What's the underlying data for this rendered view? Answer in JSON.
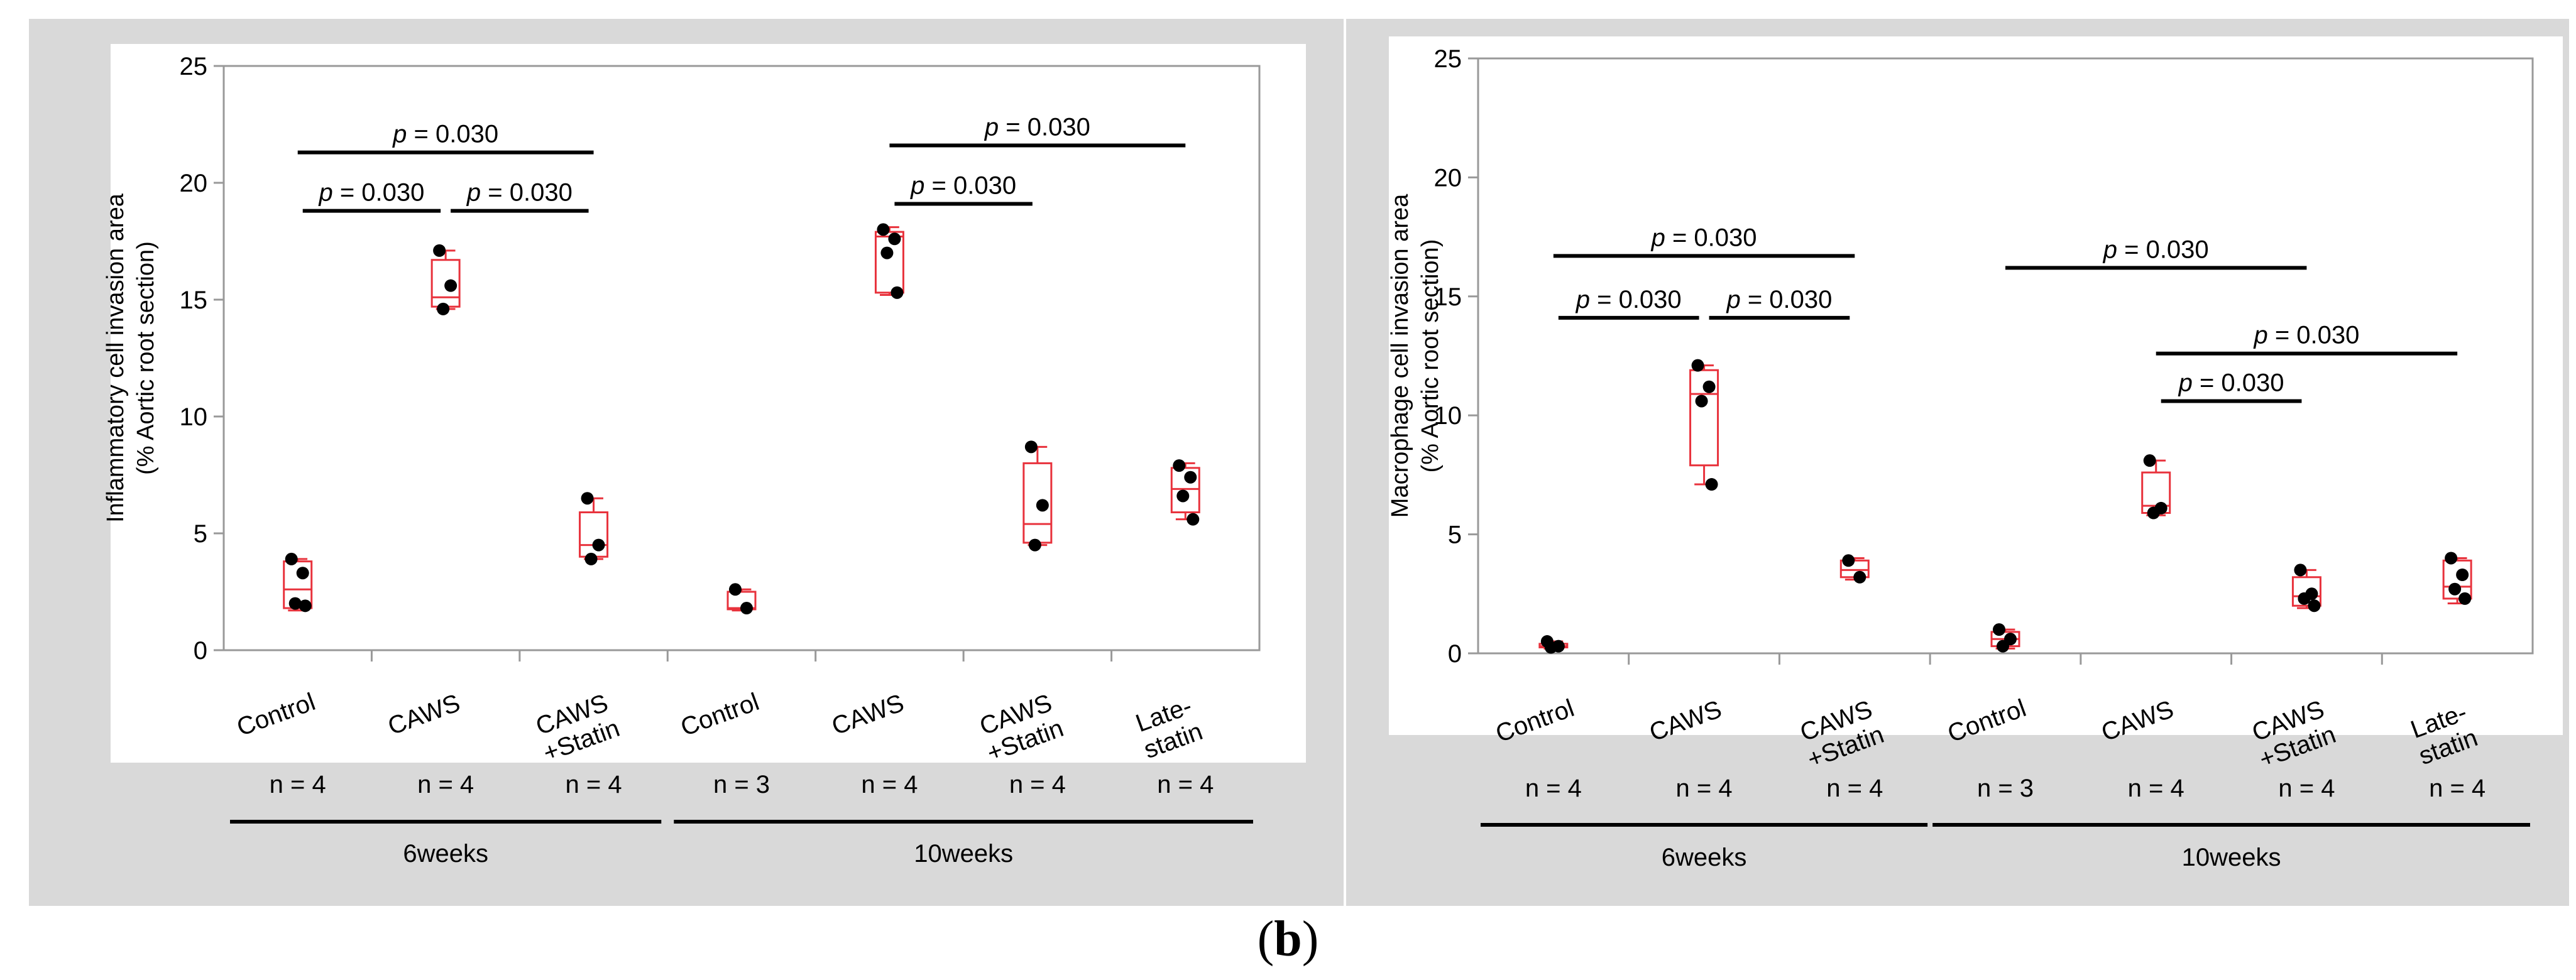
{
  "figure_label": "b",
  "charts": {
    "left": {
      "panel_label": "left",
      "chart_data": {
        "type": "box",
        "title": "",
        "ylabel_line1": "Inflammatory cell invasion area",
        "ylabel_line2": "(% Aortic root section)",
        "ylim": [
          0,
          25
        ],
        "yticks": [
          0,
          5,
          10,
          15,
          20,
          25
        ],
        "groups": [
          {
            "label": "Control",
            "n": "n = 4",
            "period": "6weeks",
            "box": {
              "min": 1.7,
              "q1": 1.8,
              "median": 2.6,
              "q3": 3.8,
              "max": 3.9
            },
            "points": [
              3.9,
              3.3,
              2.0,
              1.9
            ]
          },
          {
            "label": "CAWS",
            "n": "n = 4",
            "period": "6weeks",
            "box": {
              "min": 14.6,
              "q1": 14.7,
              "median": 15.1,
              "q3": 16.7,
              "max": 17.1
            },
            "points": [
              17.1,
              15.6,
              14.6
            ]
          },
          {
            "label": "CAWS\n+Statin",
            "n": "n = 4",
            "period": "6weeks",
            "box": {
              "min": 3.9,
              "q1": 4.0,
              "median": 4.5,
              "q3": 5.9,
              "max": 6.5
            },
            "points": [
              6.5,
              4.5,
              3.9
            ]
          },
          {
            "label": "Control",
            "n": "n = 3",
            "period": "10weeks",
            "box": {
              "min": 1.7,
              "q1": 1.75,
              "median": 1.8,
              "q3": 2.5,
              "max": 2.6
            },
            "points": [
              2.6,
              1.8
            ]
          },
          {
            "label": "CAWS",
            "n": "n = 4",
            "period": "10weeks",
            "box": {
              "min": 15.2,
              "q1": 15.3,
              "median": 17.7,
              "q3": 17.9,
              "max": 18.1
            },
            "points": [
              18.0,
              17.6,
              17.0,
              15.3
            ]
          },
          {
            "label": "CAWS\n+Statin",
            "n": "n = 4",
            "period": "10weeks",
            "box": {
              "min": 4.5,
              "q1": 4.6,
              "median": 5.4,
              "q3": 8.0,
              "max": 8.7
            },
            "points": [
              8.7,
              6.2,
              4.5
            ]
          },
          {
            "label": "Late-\nstatin",
            "n": "n = 4",
            "period": "10weeks",
            "box": {
              "min": 5.6,
              "q1": 5.9,
              "median": 6.9,
              "q3": 7.8,
              "max": 8.0
            },
            "points": [
              7.9,
              7.4,
              6.6,
              5.6
            ]
          }
        ],
        "periods": [
          {
            "label": "6weeks",
            "from": 0,
            "to": 2
          },
          {
            "label": "10weeks",
            "from": 3,
            "to": 6
          }
        ],
        "comparisons": [
          {
            "from": 0,
            "to": 1,
            "y": 18.8,
            "text": "= 0.030"
          },
          {
            "from": 1,
            "to": 2,
            "y": 18.8,
            "text": "= 0.030"
          },
          {
            "from": 0,
            "to": 2,
            "y": 21.3,
            "text": "= 0.030"
          },
          {
            "from": 4,
            "to": 5,
            "y": 19.1,
            "text": "= 0.030"
          },
          {
            "from": 4,
            "to": 6,
            "y": 21.6,
            "text": "= 0.030"
          }
        ]
      }
    },
    "right": {
      "panel_label": "right",
      "chart_data": {
        "type": "box",
        "title": "",
        "ylabel_line1": "Macrophage cell invasion area",
        "ylabel_line2": "(% Aortic root section)",
        "ylim": [
          0,
          25
        ],
        "yticks": [
          0,
          5,
          10,
          15,
          20,
          25
        ],
        "groups": [
          {
            "label": "Control",
            "n": "n = 4",
            "period": "6weeks",
            "box": {
              "min": 0.2,
              "q1": 0.25,
              "median": 0.3,
              "q3": 0.4,
              "max": 0.5
            },
            "points": [
              0.5,
              0.3,
              0.25
            ]
          },
          {
            "label": "CAWS",
            "n": "n = 4",
            "period": "6weeks",
            "box": {
              "min": 7.1,
              "q1": 7.9,
              "median": 10.9,
              "q3": 11.9,
              "max": 12.1
            },
            "points": [
              12.1,
              11.2,
              10.6,
              7.1
            ]
          },
          {
            "label": "CAWS\n+Statin",
            "n": "n = 4",
            "period": "6weeks",
            "box": {
              "min": 3.1,
              "q1": 3.2,
              "median": 3.5,
              "q3": 3.9,
              "max": 4.0
            },
            "points": [
              3.9,
              3.2
            ]
          },
          {
            "label": "Control",
            "n": "n = 3",
            "period": "10weeks",
            "box": {
              "min": 0.2,
              "q1": 0.3,
              "median": 0.6,
              "q3": 0.9,
              "max": 1.0
            },
            "points": [
              1.0,
              0.6,
              0.3
            ]
          },
          {
            "label": "CAWS",
            "n": "n = 4",
            "period": "10weeks",
            "box": {
              "min": 5.8,
              "q1": 5.9,
              "median": 6.2,
              "q3": 7.6,
              "max": 8.1
            },
            "points": [
              8.1,
              6.1,
              5.9
            ]
          },
          {
            "label": "CAWS\n+Statin",
            "n": "n = 4",
            "period": "10weeks",
            "box": {
              "min": 1.9,
              "q1": 2.0,
              "median": 2.4,
              "q3": 3.2,
              "max": 3.5
            },
            "points": [
              3.5,
              2.5,
              2.3,
              2.0
            ]
          },
          {
            "label": "Late-\nstatin",
            "n": "n = 4",
            "period": "10weeks",
            "box": {
              "min": 2.1,
              "q1": 2.3,
              "median": 2.8,
              "q3": 3.9,
              "max": 4.0
            },
            "points": [
              4.0,
              3.3,
              2.7,
              2.3
            ]
          }
        ],
        "periods": [
          {
            "label": "6weeks",
            "from": 0,
            "to": 2
          },
          {
            "label": "10weeks",
            "from": 3,
            "to": 6
          }
        ],
        "comparisons": [
          {
            "from": 0,
            "to": 1,
            "y": 14.1,
            "text": "= 0.030"
          },
          {
            "from": 1,
            "to": 2,
            "y": 14.1,
            "text": "= 0.030"
          },
          {
            "from": 0,
            "to": 2,
            "y": 16.7,
            "text": "= 0.030"
          },
          {
            "from": 3,
            "to": 5,
            "y": 16.2,
            "text": "= 0.030"
          },
          {
            "from": 4,
            "to": 5,
            "y": 10.6,
            "text": "= 0.030"
          },
          {
            "from": 4,
            "to": 6,
            "y": 12.6,
            "text": "= 0.030"
          }
        ]
      }
    }
  },
  "p_symbol": "p",
  "colors": {
    "panel_bg": "#d9d9d9",
    "plot_bg": "#ffffff",
    "box": "#e8323c",
    "point": "#000000",
    "axis": "#999999",
    "text": "#000000"
  }
}
